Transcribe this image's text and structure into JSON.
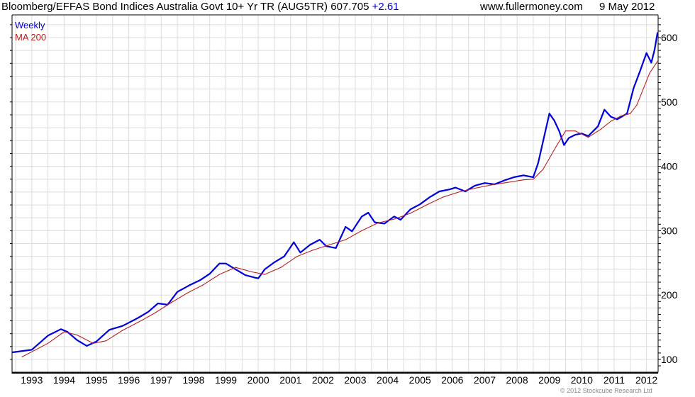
{
  "header": {
    "title": "Bloomberg/EFFAS Bond Indices Australia Govt 10+ Yr TR (AUG5TR) 607.705",
    "change": "+2.61",
    "site": "www.fullermoney.com",
    "date": "9 May 2012"
  },
  "footer": {
    "copyright": "© 2012 Stockcube Research Ltd"
  },
  "colors": {
    "weekly": "#0000dd",
    "ma": "#b22222",
    "grid": "#dddddd"
  },
  "chart_data": {
    "type": "line",
    "title": "Bloomberg/EFFAS Bond Indices Australia Govt 10+ Yr TR (AUG5TR)",
    "xlabel": "",
    "ylabel": "",
    "xlim": [
      1992.39,
      2012.36
    ],
    "ylim": [
      80,
      652
    ],
    "grid": true,
    "legend": "top-left",
    "x_ticks": [
      "1993",
      "1994",
      "1995",
      "1996",
      "1997",
      "1998",
      "1999",
      "2000",
      "2001",
      "2002",
      "2003",
      "2004",
      "2005",
      "2006",
      "2007",
      "2008",
      "2009",
      "2010",
      "2011",
      "2012"
    ],
    "y_ticks": [
      "100",
      "200",
      "300",
      "400",
      "500",
      "600"
    ],
    "series": [
      {
        "name": "Weekly",
        "x": [
          1992.4,
          1993.0,
          1993.5,
          1993.9,
          1994.1,
          1994.4,
          1994.7,
          1995.0,
          1995.4,
          1995.8,
          1996.0,
          1996.3,
          1996.6,
          1996.9,
          1997.2,
          1997.5,
          1997.9,
          1998.2,
          1998.5,
          1998.8,
          1999.0,
          1999.3,
          1999.6,
          1999.9,
          2000.0,
          2000.2,
          2000.5,
          2000.8,
          2001.1,
          2001.3,
          2001.6,
          2001.9,
          2002.1,
          2002.4,
          2002.7,
          2002.9,
          2003.2,
          2003.4,
          2003.6,
          2003.9,
          2004.2,
          2004.4,
          2004.7,
          2005.0,
          2005.3,
          2005.6,
          2005.9,
          2006.1,
          2006.4,
          2006.7,
          2007.0,
          2007.3,
          2007.6,
          2007.9,
          2008.2,
          2008.5,
          2008.65,
          2008.8,
          2009.0,
          2009.15,
          2009.3,
          2009.45,
          2009.6,
          2009.8,
          2010.0,
          2010.2,
          2010.5,
          2010.7,
          2010.9,
          2011.1,
          2011.4,
          2011.6,
          2011.8,
          2012.0,
          2012.15,
          2012.25,
          2012.34
        ],
        "values": [
          111,
          115,
          137,
          147,
          143,
          130,
          121,
          128,
          146,
          152,
          157,
          165,
          174,
          187,
          185,
          205,
          216,
          223,
          233,
          249,
          249,
          240,
          231,
          227,
          226,
          240,
          251,
          260,
          282,
          266,
          278,
          286,
          276,
          273,
          306,
          299,
          322,
          328,
          313,
          311,
          322,
          317,
          333,
          341,
          352,
          361,
          364,
          367,
          361,
          370,
          374,
          372,
          378,
          383,
          386,
          383,
          405,
          438,
          482,
          471,
          455,
          433,
          444,
          449,
          451,
          447,
          462,
          488,
          477,
          473,
          482,
          521,
          548,
          576,
          561,
          581,
          607.7
        ]
      },
      {
        "name": "MA 200",
        "x": [
          1992.7,
          1993.5,
          1994.0,
          1994.4,
          1994.9,
          1995.3,
          1995.8,
          1996.3,
          1996.8,
          1997.3,
          1997.8,
          1998.3,
          1998.8,
          1999.3,
          1999.8,
          2000.2,
          2000.7,
          2001.2,
          2001.7,
          2002.2,
          2002.7,
          2003.2,
          2003.7,
          2004.2,
          2004.7,
          2005.2,
          2005.7,
          2006.2,
          2006.7,
          2007.2,
          2007.7,
          2008.2,
          2008.5,
          2008.8,
          2009.2,
          2009.5,
          2009.8,
          2010.2,
          2010.6,
          2010.9,
          2011.2,
          2011.5,
          2011.7,
          2011.9,
          2012.1,
          2012.34
        ],
        "values": [
          104,
          125,
          143,
          138,
          125,
          129,
          145,
          158,
          172,
          188,
          203,
          216,
          232,
          243,
          236,
          232,
          243,
          260,
          270,
          278,
          286,
          300,
          312,
          318,
          327,
          340,
          352,
          360,
          366,
          371,
          375,
          379,
          380,
          395,
          430,
          455,
          455,
          445,
          458,
          470,
          478,
          482,
          495,
          520,
          545,
          563
        ]
      }
    ]
  }
}
